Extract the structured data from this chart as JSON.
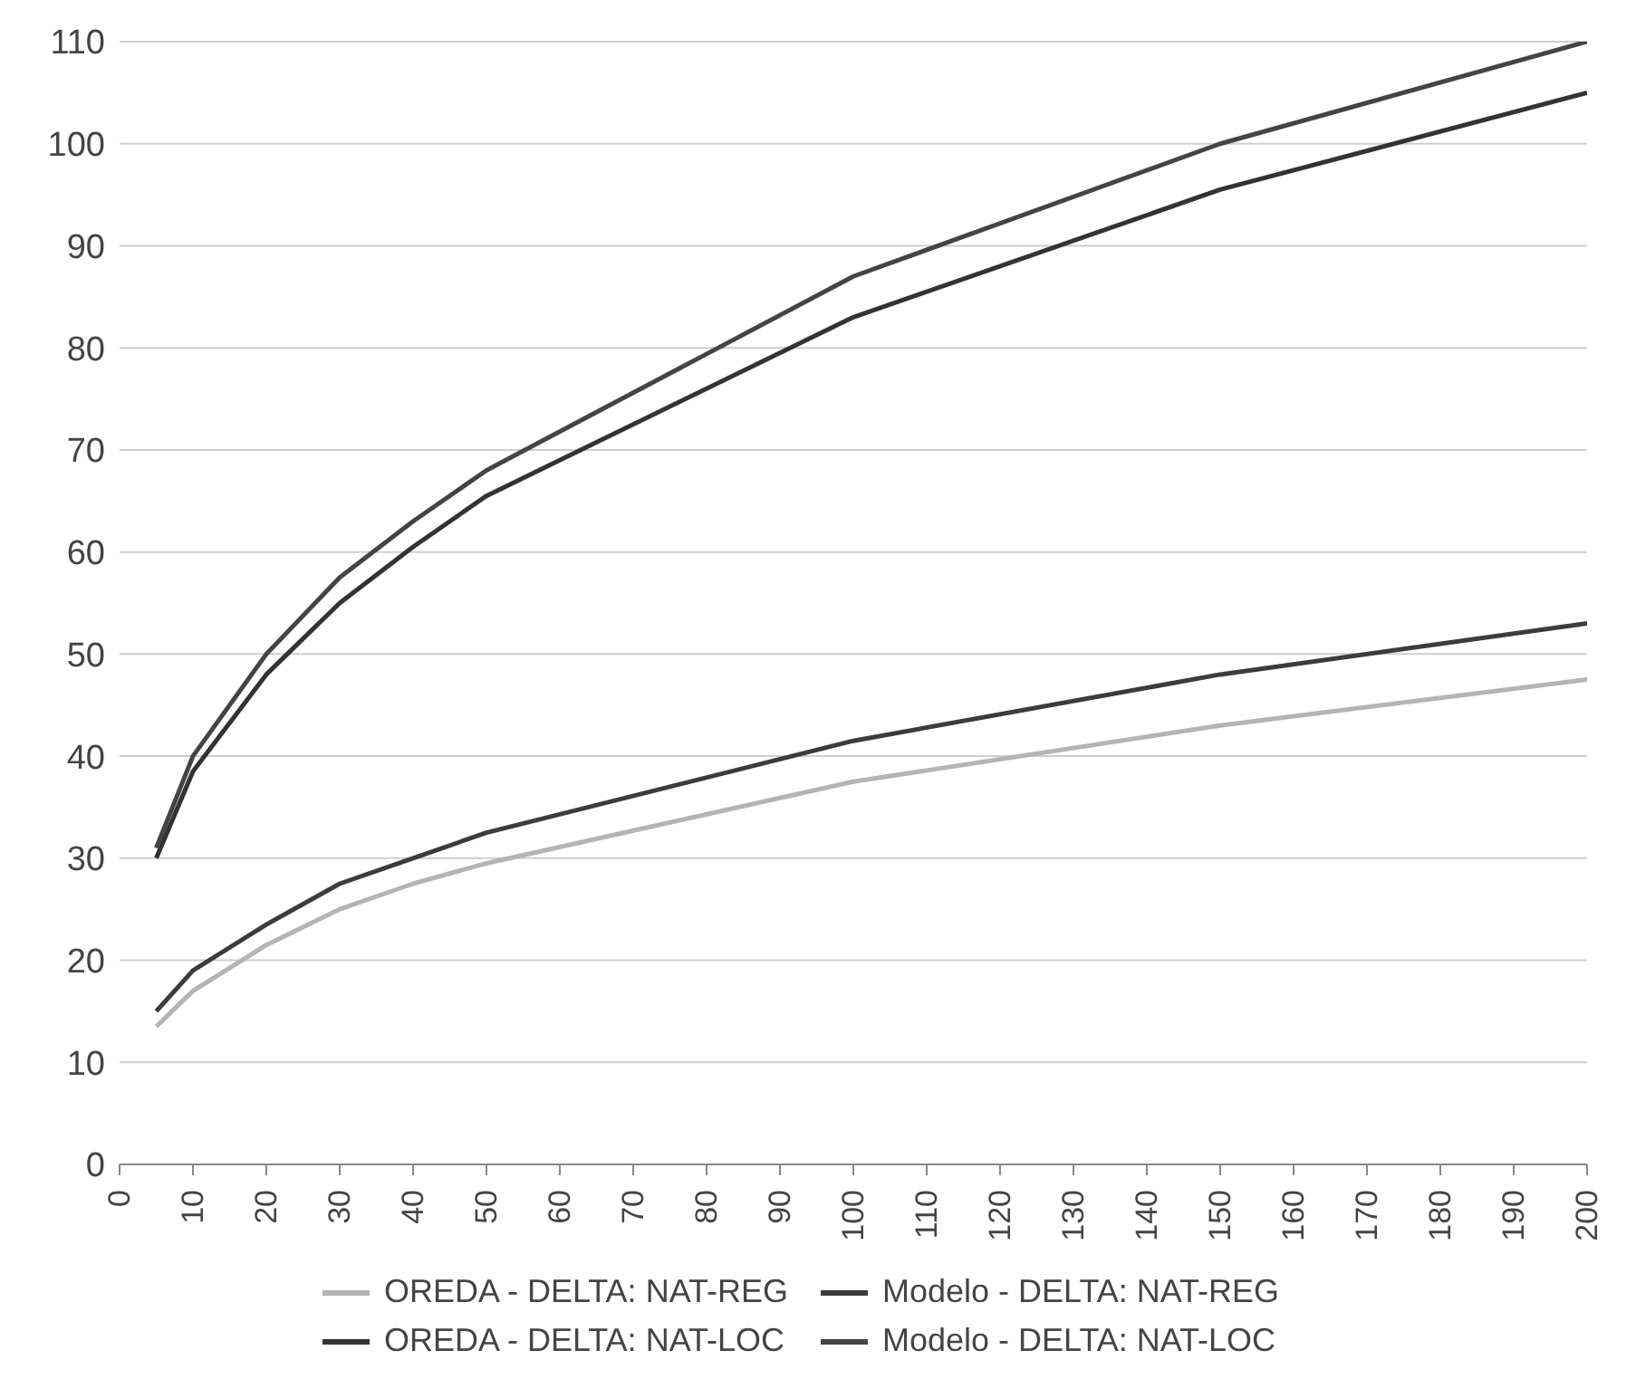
{
  "chart_data": {
    "type": "line",
    "x": [
      5,
      10,
      20,
      30,
      40,
      50,
      100,
      150,
      200
    ],
    "series": [
      {
        "name": "OREDA - DELTA: NAT-REG",
        "color": "#b4b4b4",
        "values": [
          13.5,
          17,
          21.5,
          25,
          27.5,
          29.5,
          37.5,
          43,
          47.5
        ]
      },
      {
        "name": "Modelo - DELTA: NAT-REG",
        "color": "#3c3c3c",
        "values": [
          15,
          19,
          23.5,
          27.5,
          30,
          32.5,
          41.5,
          48,
          53
        ]
      },
      {
        "name": "OREDA - DELTA: NAT-LOC",
        "color": "#333333",
        "values": [
          30,
          38.5,
          48,
          55,
          60.5,
          65.5,
          83,
          95.5,
          105
        ]
      },
      {
        "name": "Modelo - DELTA: NAT-LOC",
        "color": "#444444",
        "values": [
          31,
          40,
          50,
          57.5,
          63,
          68,
          87,
          100,
          110
        ]
      }
    ],
    "xlim": [
      0,
      200
    ],
    "xticks": [
      0,
      10,
      20,
      30,
      40,
      50,
      60,
      70,
      80,
      90,
      100,
      110,
      120,
      130,
      140,
      150,
      160,
      170,
      180,
      190,
      200
    ],
    "ylim": [
      0,
      110
    ],
    "yticks": [
      0,
      10,
      20,
      30,
      40,
      50,
      60,
      70,
      80,
      90,
      100,
      110
    ],
    "grid": "y",
    "legend": "bottom",
    "marker": "none",
    "line_style": "solid"
  }
}
